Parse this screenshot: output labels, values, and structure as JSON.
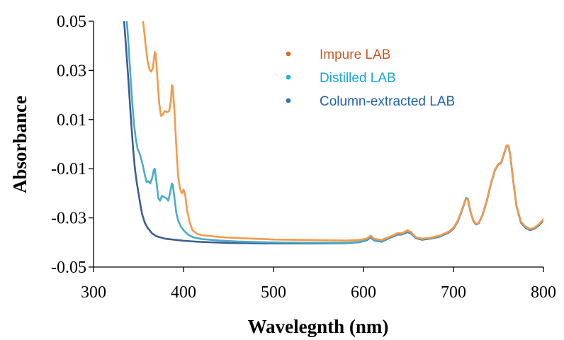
{
  "chart_data": {
    "type": "line",
    "title": "",
    "xlabel": "Wavelegnth (nm)",
    "ylabel": "Absorbance",
    "xlim": [
      300,
      800
    ],
    "ylim": [
      -0.05,
      0.05
    ],
    "x_ticks": [
      300,
      400,
      500,
      600,
      700,
      800
    ],
    "x_tick_labels": [
      "300",
      "400",
      "500",
      "600",
      "700",
      "800"
    ],
    "y_ticks": [
      -0.05,
      -0.03,
      -0.01,
      0.01,
      0.03,
      0.05
    ],
    "y_tick_labels": [
      "-0.05",
      "-0.03",
      "-0.01",
      "0.01",
      "0.03",
      "0.05"
    ],
    "legend_position": "top-right",
    "series": [
      {
        "name": "Impure LAB",
        "line_color": "#f39a4c",
        "legend_marker_color": "#d9662b",
        "legend_text_color": "#c8592a",
        "points": [
          [
            355,
            0.05
          ],
          [
            356,
            0.047
          ],
          [
            358,
            0.04
          ],
          [
            360,
            0.034
          ],
          [
            362,
            0.0305
          ],
          [
            364,
            0.0295
          ],
          [
            366,
            0.031
          ],
          [
            368,
            0.0375
          ],
          [
            369,
            0.037
          ],
          [
            371,
            0.027
          ],
          [
            373,
            0.0165
          ],
          [
            375,
            0.0115
          ],
          [
            377,
            0.012
          ],
          [
            379,
            0.0135
          ],
          [
            382,
            0.013
          ],
          [
            384,
            0.0135
          ],
          [
            386,
            0.0175
          ],
          [
            387,
            0.024
          ],
          [
            388,
            0.0235
          ],
          [
            390,
            0.013
          ],
          [
            392,
            -0.001
          ],
          [
            394,
            -0.013
          ],
          [
            396,
            -0.018
          ],
          [
            398,
            -0.02
          ],
          [
            400,
            -0.0185
          ],
          [
            402,
            -0.021
          ],
          [
            404,
            -0.027
          ],
          [
            407,
            -0.032
          ],
          [
            410,
            -0.035
          ],
          [
            415,
            -0.0365
          ],
          [
            420,
            -0.037
          ],
          [
            440,
            -0.0378
          ],
          [
            460,
            -0.0382
          ],
          [
            500,
            -0.0388
          ],
          [
            540,
            -0.039
          ],
          [
            580,
            -0.0392
          ],
          [
            595,
            -0.039
          ],
          [
            603,
            -0.0385
          ],
          [
            608,
            -0.0372
          ],
          [
            612,
            -0.0385
          ],
          [
            620,
            -0.039
          ],
          [
            630,
            -0.0375
          ],
          [
            638,
            -0.0362
          ],
          [
            642,
            -0.0362
          ],
          [
            645,
            -0.0358
          ],
          [
            649,
            -0.035
          ],
          [
            653,
            -0.0358
          ],
          [
            658,
            -0.0378
          ],
          [
            665,
            -0.0385
          ],
          [
            675,
            -0.038
          ],
          [
            685,
            -0.0372
          ],
          [
            695,
            -0.0355
          ],
          [
            700,
            -0.034
          ],
          [
            705,
            -0.031
          ],
          [
            710,
            -0.026
          ],
          [
            714,
            -0.0222
          ],
          [
            716,
            -0.0225
          ],
          [
            719,
            -0.0275
          ],
          [
            722,
            -0.031
          ],
          [
            725,
            -0.0325
          ],
          [
            728,
            -0.032
          ],
          [
            732,
            -0.029
          ],
          [
            737,
            -0.023
          ],
          [
            742,
            -0.0155
          ],
          [
            746,
            -0.0105
          ],
          [
            750,
            -0.008
          ],
          [
            753,
            -0.0075
          ],
          [
            756,
            -0.004
          ],
          [
            759,
            -0.0005
          ],
          [
            761,
            -0.0005
          ],
          [
            763,
            -0.004
          ],
          [
            766,
            -0.0135
          ],
          [
            770,
            -0.025
          ],
          [
            775,
            -0.0315
          ],
          [
            780,
            -0.0335
          ],
          [
            785,
            -0.0345
          ],
          [
            790,
            -0.034
          ],
          [
            795,
            -0.0325
          ],
          [
            800,
            -0.0305
          ]
        ]
      },
      {
        "name": "Distilled LAB",
        "line_color": "#4bacc6",
        "legend_marker_color": "#19b5e0",
        "legend_text_color": "#1aa6d8",
        "points": [
          [
            337,
            0.05
          ],
          [
            339,
            0.04
          ],
          [
            341,
            0.028
          ],
          [
            343,
            0.017
          ],
          [
            345,
            0.008
          ],
          [
            347,
            0.002
          ],
          [
            349,
            -0.002
          ],
          [
            351,
            -0.0035
          ],
          [
            353,
            -0.006
          ],
          [
            355,
            -0.009
          ],
          [
            357,
            -0.0125
          ],
          [
            359,
            -0.0155
          ],
          [
            361,
            -0.015
          ],
          [
            363,
            -0.016
          ],
          [
            365,
            -0.014
          ],
          [
            367,
            -0.0105
          ],
          [
            368,
            -0.01
          ],
          [
            370,
            -0.0155
          ],
          [
            372,
            -0.022
          ],
          [
            374,
            -0.023
          ],
          [
            376,
            -0.021
          ],
          [
            378,
            -0.0215
          ],
          [
            381,
            -0.022
          ],
          [
            383,
            -0.023
          ],
          [
            385,
            -0.02
          ],
          [
            387,
            -0.016
          ],
          [
            388,
            -0.0165
          ],
          [
            390,
            -0.022
          ],
          [
            392,
            -0.028
          ],
          [
            394,
            -0.031
          ],
          [
            397,
            -0.0335
          ],
          [
            400,
            -0.035
          ],
          [
            405,
            -0.0368
          ],
          [
            410,
            -0.0378
          ],
          [
            420,
            -0.0386
          ],
          [
            440,
            -0.0392
          ],
          [
            460,
            -0.0396
          ],
          [
            500,
            -0.04
          ],
          [
            540,
            -0.0401
          ],
          [
            580,
            -0.0401
          ],
          [
            595,
            -0.0398
          ],
          [
            603,
            -0.039
          ],
          [
            608,
            -0.0378
          ],
          [
            612,
            -0.039
          ],
          [
            620,
            -0.0395
          ],
          [
            630,
            -0.0378
          ],
          [
            638,
            -0.0366
          ],
          [
            642,
            -0.0366
          ],
          [
            645,
            -0.0362
          ],
          [
            649,
            -0.0355
          ],
          [
            653,
            -0.0362
          ],
          [
            658,
            -0.038
          ],
          [
            665,
            -0.0387
          ],
          [
            675,
            -0.0382
          ],
          [
            685,
            -0.0374
          ],
          [
            695,
            -0.0357
          ],
          [
            700,
            -0.0342
          ],
          [
            705,
            -0.0312
          ],
          [
            710,
            -0.0262
          ],
          [
            714,
            -0.0218
          ],
          [
            716,
            -0.0222
          ],
          [
            719,
            -0.0275
          ],
          [
            722,
            -0.031
          ],
          [
            725,
            -0.0325
          ],
          [
            728,
            -0.032
          ],
          [
            732,
            -0.029
          ],
          [
            737,
            -0.023
          ],
          [
            742,
            -0.0155
          ],
          [
            746,
            -0.0105
          ],
          [
            750,
            -0.008
          ],
          [
            753,
            -0.0075
          ],
          [
            756,
            -0.004
          ],
          [
            759,
            -0.0005
          ],
          [
            761,
            -0.0005
          ],
          [
            763,
            -0.004
          ],
          [
            766,
            -0.0135
          ],
          [
            770,
            -0.025
          ],
          [
            775,
            -0.0318
          ],
          [
            780,
            -0.0338
          ],
          [
            785,
            -0.0348
          ],
          [
            790,
            -0.0342
          ],
          [
            795,
            -0.0328
          ],
          [
            800,
            -0.0308
          ]
        ]
      },
      {
        "name": "Column-extracted LAB",
        "line_color": "#3d5d94",
        "legend_marker_color": "#2a73b8",
        "legend_text_color": "#1f64a8",
        "points": [
          [
            334,
            0.05
          ],
          [
            336,
            0.04
          ],
          [
            338,
            0.03
          ],
          [
            340,
            0.019
          ],
          [
            342,
            0.008
          ],
          [
            344,
            -0.002
          ],
          [
            346,
            -0.01
          ],
          [
            348,
            -0.0155
          ],
          [
            350,
            -0.02
          ],
          [
            352,
            -0.0245
          ],
          [
            354,
            -0.0285
          ],
          [
            357,
            -0.032
          ],
          [
            360,
            -0.034
          ],
          [
            365,
            -0.0363
          ],
          [
            370,
            -0.0375
          ],
          [
            380,
            -0.0385
          ],
          [
            400,
            -0.0393
          ],
          [
            420,
            -0.0398
          ],
          [
            450,
            -0.0402
          ],
          [
            500,
            -0.0404
          ],
          [
            540,
            -0.0404
          ],
          [
            580,
            -0.0403
          ],
          [
            595,
            -0.0399
          ],
          [
            603,
            -0.0392
          ],
          [
            608,
            -0.038
          ],
          [
            612,
            -0.0392
          ],
          [
            620,
            -0.0397
          ],
          [
            630,
            -0.038
          ],
          [
            638,
            -0.0368
          ],
          [
            642,
            -0.0368
          ],
          [
            645,
            -0.0364
          ],
          [
            649,
            -0.0358
          ],
          [
            653,
            -0.0364
          ],
          [
            658,
            -0.0382
          ],
          [
            665,
            -0.0389
          ],
          [
            675,
            -0.0384
          ],
          [
            685,
            -0.0376
          ],
          [
            695,
            -0.0359
          ],
          [
            700,
            -0.0344
          ],
          [
            705,
            -0.0314
          ],
          [
            710,
            -0.0264
          ],
          [
            714,
            -0.022
          ],
          [
            716,
            -0.0224
          ],
          [
            719,
            -0.0277
          ],
          [
            722,
            -0.0312
          ],
          [
            725,
            -0.0327
          ],
          [
            728,
            -0.0322
          ],
          [
            732,
            -0.0292
          ],
          [
            737,
            -0.0232
          ],
          [
            742,
            -0.0157
          ],
          [
            746,
            -0.0107
          ],
          [
            750,
            -0.0082
          ],
          [
            753,
            -0.0077
          ],
          [
            756,
            -0.0042
          ],
          [
            759,
            -0.0007
          ],
          [
            761,
            -0.0007
          ],
          [
            763,
            -0.0042
          ],
          [
            766,
            -0.0137
          ],
          [
            770,
            -0.0252
          ],
          [
            775,
            -0.032
          ],
          [
            780,
            -0.034
          ],
          [
            785,
            -0.035
          ],
          [
            790,
            -0.0344
          ],
          [
            795,
            -0.033
          ],
          [
            800,
            -0.031
          ]
        ]
      }
    ]
  }
}
